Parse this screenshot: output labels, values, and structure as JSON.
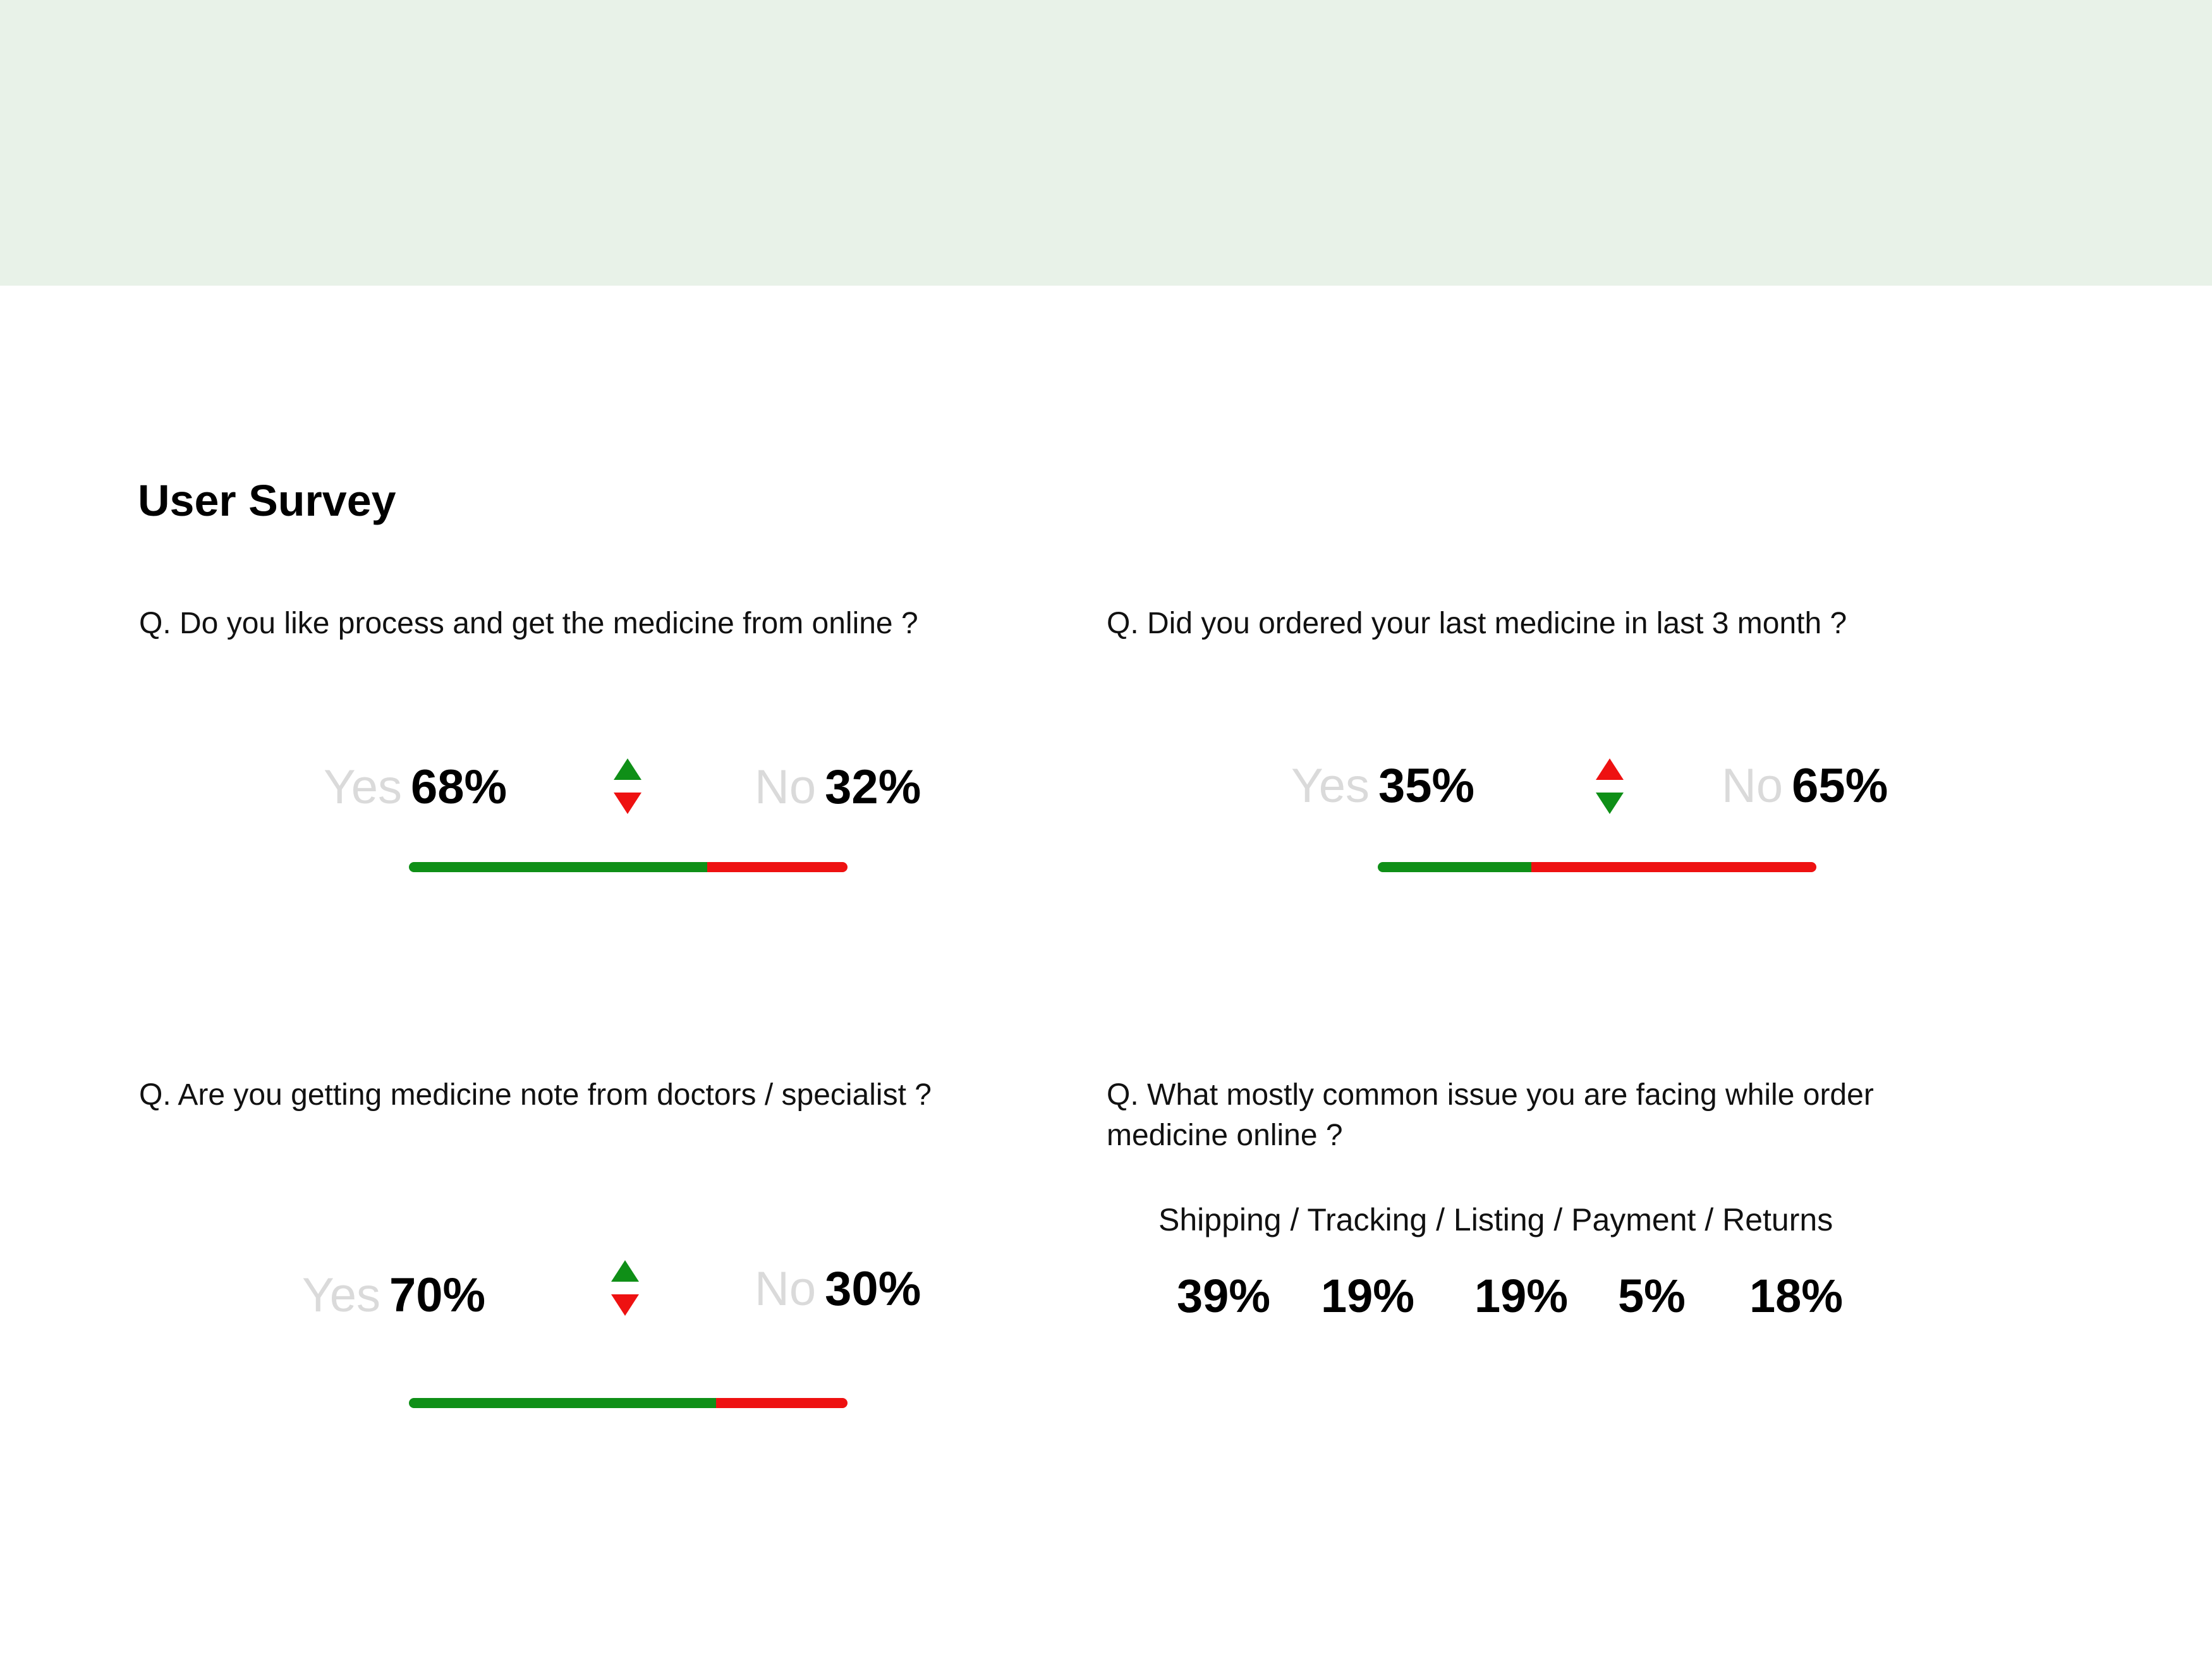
{
  "colors": {
    "band": "#e8f2e8",
    "green": "#0f8f17",
    "red": "#ee1111",
    "muted_label": "#dadada"
  },
  "title": "User Survey",
  "q1": {
    "question": "Q. Do you like process and get the medicine from online ?",
    "yes_label": "Yes",
    "yes_value": "68%",
    "no_label": "No",
    "no_value": "32%",
    "yes_fraction": 0.68,
    "arrow_up_color": "#0f8f17",
    "arrow_down_color": "#ee1111"
  },
  "q2": {
    "question": "Q. Did you ordered your last medicine in last 3 month ?",
    "yes_label": "Yes",
    "yes_value": "35%",
    "no_label": "No",
    "no_value": "65%",
    "yes_fraction": 0.35,
    "arrow_up_color": "#ee1111",
    "arrow_down_color": "#0f8f17"
  },
  "q3": {
    "question": "Q. Are you getting medicine note from doctors / specialist ?",
    "yes_label": "Yes",
    "yes_value": "70%",
    "no_label": "No",
    "no_value": "30%",
    "yes_fraction": 0.7,
    "arrow_up_color": "#0f8f17",
    "arrow_down_color": "#ee1111"
  },
  "q4": {
    "question": "Q. What mostly common issue you are facing while order medicine online ?",
    "categories": "Shipping / Tracking / Listing / Payment / Returns",
    "values": [
      "39%",
      "19%",
      "19%",
      "5%",
      "18%"
    ]
  }
}
